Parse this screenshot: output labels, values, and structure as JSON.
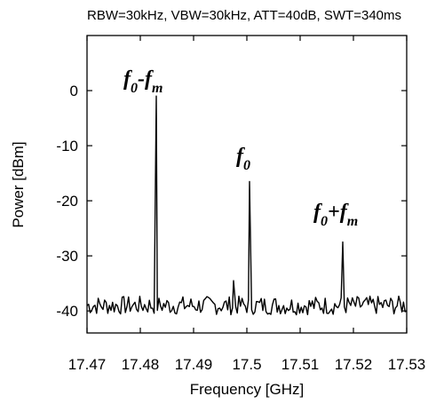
{
  "chart_data": {
    "type": "line",
    "settings_text": "RBW=30kHz, VBW=30kHz, ATT=40dB, SWT=340ms",
    "xlabel": "Frequency [GHz]",
    "ylabel": "Power [dBm]",
    "xlim": [
      17.47,
      17.53
    ],
    "ylim": [
      -44,
      10
    ],
    "x_ticks": [
      17.47,
      17.48,
      17.49,
      17.5,
      17.51,
      17.52,
      17.53
    ],
    "x_tick_labels": [
      "17.47",
      "17.48",
      "17.49",
      "17.5",
      "17.51",
      "17.52",
      "17.53"
    ],
    "y_ticks": [
      0,
      -10,
      -20,
      -30,
      -40
    ],
    "y_tick_labels": [
      "0",
      "-10",
      "-20",
      "-30",
      "-40"
    ],
    "grid": false,
    "color": "#000000",
    "noise_floor_dbm": -39,
    "peaks": [
      {
        "label": "f0-fm",
        "x": 17.483,
        "y": -1
      },
      {
        "label": "f0",
        "x": 17.5005,
        "y": -16.5
      },
      {
        "label": "f0+fm",
        "x": 17.518,
        "y": -27.5
      },
      {
        "x": 17.4975,
        "y": -34.5
      }
    ],
    "annotations": [
      {
        "name": "f0-fm",
        "parts": [
          {
            "t": "f",
            "sub": "0"
          },
          {
            "t": "-"
          },
          {
            "t": "f",
            "sub": "m"
          }
        ]
      },
      {
        "name": "f0",
        "parts": [
          {
            "t": "f",
            "sub": "0"
          }
        ]
      },
      {
        "name": "f0+fm",
        "parts": [
          {
            "t": "f",
            "sub": "0"
          },
          {
            "t": "+"
          },
          {
            "t": "f",
            "sub": "m"
          }
        ]
      }
    ]
  }
}
